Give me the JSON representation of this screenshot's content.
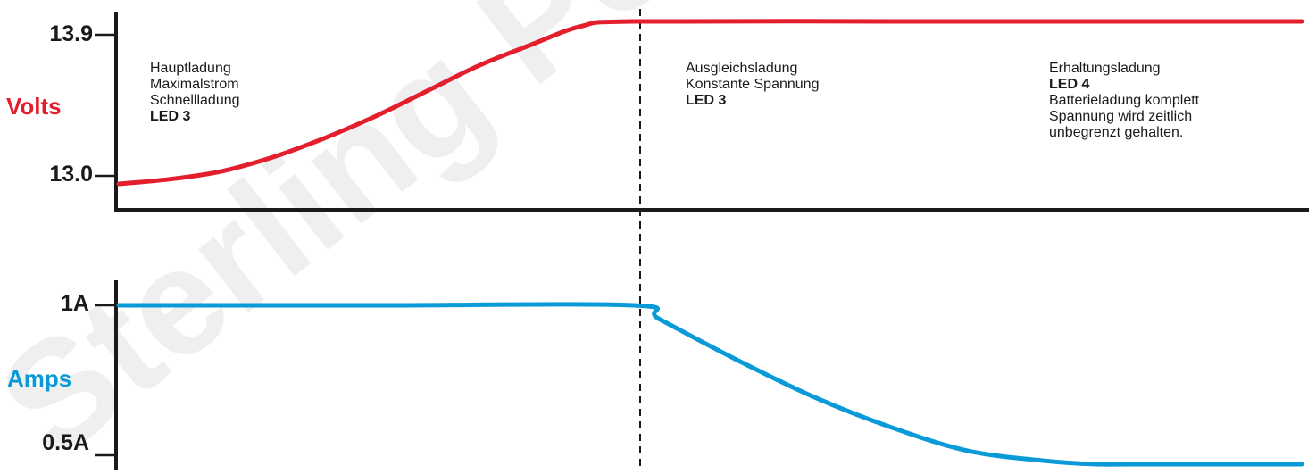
{
  "watermark": "Sterling Power",
  "chart_data": [
    {
      "type": "line",
      "ylabel": "Volts",
      "y_ticks": [
        "13.9",
        "13.0"
      ],
      "ylim": [
        12.9,
        14.1
      ],
      "color": "#e31e2d",
      "series": [
        {
          "points": [
            [
              0,
              12.95
            ],
            [
              0.1,
              12.98
            ],
            [
              0.2,
              13.03
            ],
            [
              0.3,
              13.12
            ],
            [
              0.4,
              13.24
            ],
            [
              0.5,
              13.38
            ],
            [
              0.6,
              13.54
            ],
            [
              0.7,
              13.7
            ],
            [
              0.8,
              13.83
            ],
            [
              0.9,
              13.95
            ],
            [
              1.0,
              13.98
            ],
            [
              1.5,
              13.98
            ],
            [
              2.0,
              13.98
            ],
            [
              2.3,
              13.98
            ]
          ]
        }
      ]
    },
    {
      "type": "line",
      "ylabel": "Amps",
      "y_ticks": [
        "1A",
        "0.5A"
      ],
      "ylim": [
        0.45,
        1.1
      ],
      "color": "#0a9ad8",
      "series": [
        {
          "points": [
            [
              0,
              1.0
            ],
            [
              0.5,
              1.0
            ],
            [
              1.0,
              1.0
            ],
            [
              1.05,
              0.96
            ],
            [
              1.2,
              0.84
            ],
            [
              1.35,
              0.73
            ],
            [
              1.5,
              0.64
            ],
            [
              1.65,
              0.57
            ],
            [
              1.8,
              0.54
            ],
            [
              1.9,
              0.53
            ],
            [
              2.0,
              0.53
            ],
            [
              2.3,
              0.53
            ]
          ]
        }
      ]
    }
  ],
  "phases": {
    "bulk": {
      "line1": "Hauptladung",
      "line2": "Maximalstrom",
      "line3": "Schnellladung",
      "led": "LED 3"
    },
    "absorption": {
      "line1": "Ausgleichsladung",
      "line2": "Konstante Spannung",
      "led": "LED 3"
    },
    "float": {
      "line1": "Erhaltungsladung",
      "led": "LED 4",
      "line2": "Batterieladung komplett",
      "line3": "Spannung wird zeitlich",
      "line4": "unbegrenzt gehalten."
    }
  }
}
